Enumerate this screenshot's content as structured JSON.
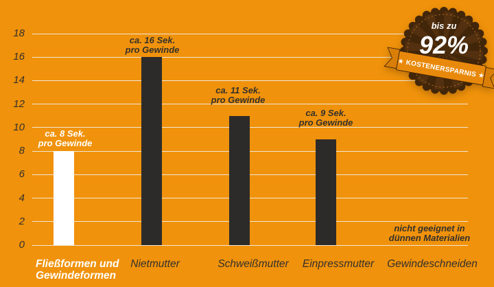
{
  "chart_data": {
    "type": "bar",
    "title": "",
    "xlabel": "",
    "ylabel": "",
    "ylim": [
      0,
      18
    ],
    "ytick_step": 2,
    "grid": true,
    "legend": false,
    "categories": [
      "Fließformen und Gewindeformen",
      "Nietmutter",
      "Schweißmutter",
      "Einpressmutter",
      "Gewindeschneiden"
    ],
    "values": [
      8,
      16,
      11,
      9,
      null
    ],
    "bars": [
      {
        "label_lines": [
          "Fließformen und",
          "Gewindeformen"
        ],
        "value": 8,
        "annotation_lines": [
          "ca. 8 Sek.",
          "pro Gewinde"
        ],
        "highlight": true
      },
      {
        "label_lines": [
          "Nietmutter"
        ],
        "value": 16,
        "annotation_lines": [
          "ca. 16 Sek.",
          "pro Gewinde"
        ],
        "highlight": false
      },
      {
        "label_lines": [
          "Schweißmutter"
        ],
        "value": 11,
        "annotation_lines": [
          "ca. 11 Sek.",
          "pro Gewinde"
        ],
        "highlight": false
      },
      {
        "label_lines": [
          "Einpressmutter"
        ],
        "value": 9,
        "annotation_lines": [
          "ca. 9 Sek.",
          "pro Gewinde"
        ],
        "highlight": false
      },
      {
        "label_lines": [
          "Gewindeschneiden"
        ],
        "value": null,
        "annotation_lines": [
          "nicht geeignet in",
          "dünnen Materialien"
        ],
        "highlight": false
      }
    ]
  },
  "badge": {
    "top_label": "bis zu",
    "value": "92%",
    "ribbon_label": "KOSTENERSPARNIS",
    "star": "★"
  },
  "colors": {
    "background": "#F0920B",
    "bar": "#2D2B2A",
    "bar_highlight": "#FFFFFF",
    "gridline": "#F2EFE8",
    "text_dark": "#34302C",
    "text_light": "#FFFFFF",
    "badge_base": "#42260A",
    "badge_ray": "#53300F",
    "ribbon": "#E9890B",
    "ribbon_tail": "#D97E07",
    "ribbon_border": "#3A2007",
    "badge_ring": "#A5661B"
  }
}
